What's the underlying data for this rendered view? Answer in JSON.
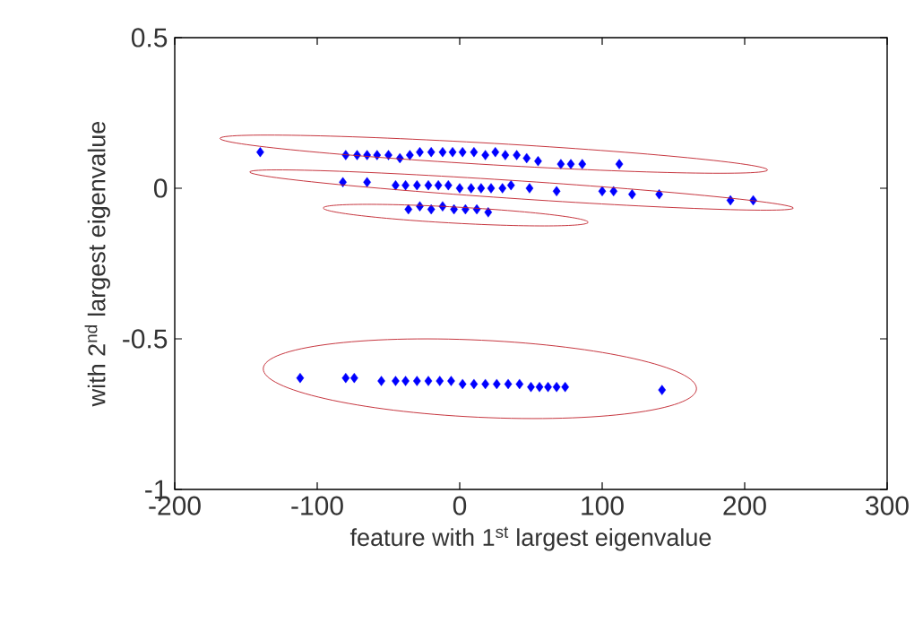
{
  "chart_data": {
    "type": "scatter",
    "xlabel": "feature with 1$^{st}$ largest eigenvalue",
    "ylabel": "with 2$^{nd}$ largest eigenvalue",
    "xlim": [
      -200,
      300
    ],
    "ylim": [
      -1,
      0.5
    ],
    "xticks": [
      -200,
      -100,
      0,
      100,
      200,
      300
    ],
    "yticks": [
      -1,
      -0.5,
      0,
      0.5
    ],
    "marker": "diamond",
    "grid": false,
    "series": [
      {
        "color": "#0000ff",
        "x": [
          -140,
          -80,
          -72,
          -65,
          -58,
          -50,
          -42,
          -35,
          -28,
          -20,
          -12,
          -5,
          2,
          10,
          18,
          25,
          32,
          40,
          47,
          55,
          71,
          78,
          86,
          112,
          -82,
          -65,
          -45,
          -38,
          -30,
          -22,
          -15,
          -8,
          0,
          8,
          15,
          22,
          30,
          36,
          49,
          68,
          100,
          108,
          121,
          140,
          190,
          206,
          -36,
          -28,
          -20,
          -12,
          -4,
          4,
          12,
          20,
          -112,
          -80,
          -74,
          -55,
          -45,
          -38,
          -30,
          -22,
          -14,
          -6,
          2,
          10,
          18,
          26,
          34,
          42,
          50,
          56,
          62,
          68,
          74,
          142
        ],
        "values": [
          0.12,
          0.11,
          0.11,
          0.11,
          0.11,
          0.11,
          0.1,
          0.11,
          0.12,
          0.12,
          0.12,
          0.12,
          0.12,
          0.12,
          0.11,
          0.12,
          0.11,
          0.11,
          0.1,
          0.09,
          0.08,
          0.08,
          0.08,
          0.08,
          0.02,
          0.02,
          0.01,
          0.01,
          0.01,
          0.01,
          0.01,
          0.01,
          0.0,
          0.0,
          0.0,
          0.0,
          0.0,
          0.01,
          0.0,
          -0.01,
          -0.01,
          -0.01,
          -0.02,
          -0.02,
          -0.04,
          -0.04,
          -0.07,
          -0.06,
          -0.07,
          -0.06,
          -0.07,
          -0.07,
          -0.07,
          -0.08,
          -0.63,
          -0.63,
          -0.63,
          -0.64,
          -0.64,
          -0.64,
          -0.64,
          -0.64,
          -0.64,
          -0.64,
          -0.65,
          -0.65,
          -0.65,
          -0.65,
          -0.65,
          -0.65,
          -0.66,
          -0.66,
          -0.66,
          -0.66,
          -0.66,
          -0.67
        ]
      }
    ]
  }
}
